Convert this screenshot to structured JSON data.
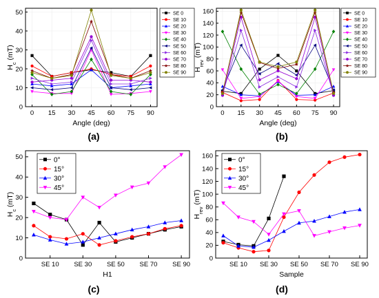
{
  "panel_labels": [
    "(a)",
    "(b)",
    "(c)",
    "(d)"
  ],
  "chart_data": [
    {
      "type": "line",
      "panel": "(a)",
      "xlabel": "Angle (deg)",
      "ylabel": "H",
      "ylabel_sub": "c",
      "ylabel_unit": " (mT)",
      "x": [
        0,
        15,
        30,
        45,
        60,
        75,
        90
      ],
      "xticks": [
        0,
        15,
        30,
        45,
        60,
        75,
        90
      ],
      "xlim": [
        -5,
        95
      ],
      "yticks": [
        0,
        10,
        20,
        30,
        40,
        50
      ],
      "ylim": [
        0,
        52
      ],
      "grid": true,
      "legend_position": "right",
      "series": [
        {
          "name": "SE 0",
          "color": "#000000",
          "marker": "square",
          "values": [
            27,
            16,
            18,
            19.5,
            18,
            16,
            27
          ]
        },
        {
          "name": "SE 10",
          "color": "#ff0000",
          "marker": "circle",
          "values": [
            21.5,
            16,
            18,
            20,
            17,
            16,
            21.5
          ]
        },
        {
          "name": "SE 20",
          "color": "#0000ff",
          "marker": "triangle",
          "values": [
            12,
            11,
            12,
            19.5,
            10,
            11,
            12
          ]
        },
        {
          "name": "SE 30",
          "color": "#ff00ff",
          "marker": "triangle-down",
          "values": [
            8,
            7,
            7,
            30,
            6.5,
            7,
            8
          ]
        },
        {
          "name": "SE 40",
          "color": "#008000",
          "marker": "diamond",
          "values": [
            17,
            6.5,
            8,
            25,
            8,
            6.5,
            17
          ]
        },
        {
          "name": "SE 50",
          "color": "#000080",
          "marker": "triangle-left",
          "values": [
            10,
            9,
            10,
            31,
            10,
            9,
            10
          ]
        },
        {
          "name": "SE 60",
          "color": "#8a2be2",
          "marker": "triangle-right",
          "values": [
            15,
            12,
            13,
            35,
            12,
            12,
            15
          ]
        },
        {
          "name": "SE 70",
          "color": "#9400d3",
          "marker": "hexagon",
          "values": [
            13,
            14,
            15,
            37,
            14,
            14,
            13
          ]
        },
        {
          "name": "SE 80",
          "color": "#800000",
          "marker": "star",
          "values": [
            19,
            15,
            17,
            45,
            17,
            15,
            19
          ]
        },
        {
          "name": "SE 90",
          "color": "#808000",
          "marker": "circle",
          "values": [
            18,
            15,
            16.5,
            51,
            16.5,
            15,
            18
          ]
        }
      ]
    },
    {
      "type": "line",
      "panel": "(b)",
      "xlabel": "Angle (deg)",
      "ylabel": "H",
      "ylabel_sub": "rev",
      "ylabel_unit": " (mT)",
      "x": [
        0,
        15,
        30,
        45,
        60,
        75,
        90
      ],
      "xticks": [
        0,
        15,
        30,
        45,
        60,
        75,
        90
      ],
      "xlim": [
        -5,
        95
      ],
      "yticks": [
        0,
        20,
        40,
        60,
        80,
        100,
        120,
        140,
        160
      ],
      "ylim": [
        0,
        165
      ],
      "grid": true,
      "legend_position": "right",
      "series": [
        {
          "name": "SE 0",
          "color": "#000000",
          "marker": "square",
          "values": [
            26,
            22,
            63,
            86,
            60,
            22,
            27
          ]
        },
        {
          "name": "SE 10",
          "color": "#ff0000",
          "marker": "circle",
          "values": [
            24,
            10,
            12,
            44,
            12,
            11,
            23
          ]
        },
        {
          "name": "SE 20",
          "color": "#0000ff",
          "marker": "triangle",
          "values": [
            34,
            20,
            18,
            42,
            19,
            20,
            34
          ]
        },
        {
          "name": "SE 30",
          "color": "#ff00ff",
          "marker": "triangle-down",
          "values": [
            62,
            14,
            17,
            43,
            17,
            14,
            62
          ]
        },
        {
          "name": "SE 40",
          "color": "#008000",
          "marker": "diamond",
          "values": [
            126,
            63,
            21,
            37,
            22,
            63,
            126
          ]
        },
        {
          "name": "SE 50",
          "color": "#000080",
          "marker": "triangle-left",
          "values": [
            28,
            103,
            55,
            72,
            53,
            103,
            28
          ]
        },
        {
          "name": "SE 60",
          "color": "#8a2be2",
          "marker": "triangle-right",
          "values": [
            20,
            128,
            33,
            50,
            33,
            128,
            20
          ]
        },
        {
          "name": "SE 70",
          "color": "#9400d3",
          "marker": "hexagon",
          "values": [
            19,
            150,
            45,
            60,
            47,
            150,
            19
          ]
        },
        {
          "name": "SE 80",
          "color": "#800000",
          "marker": "star",
          "values": [
            23,
            158,
            74,
            64,
            71,
            158,
            23
          ]
        },
        {
          "name": "SE 90",
          "color": "#808000",
          "marker": "circle",
          "values": [
            22,
            162,
            75,
            67,
            75,
            162,
            22
          ]
        }
      ]
    },
    {
      "type": "line",
      "panel": "(c)",
      "xlabel": "H1",
      "ylabel": "H",
      "ylabel_sub": "c",
      "ylabel_unit": " (mT)",
      "x": [
        0,
        10,
        20,
        30,
        40,
        50,
        60,
        70,
        80,
        90
      ],
      "xticks": [
        10,
        30,
        50,
        70,
        90
      ],
      "xtick_labels": [
        "SE 10",
        "SE 30",
        "SE 50",
        "SE 70",
        "SE 90"
      ],
      "xlim": [
        -5,
        95
      ],
      "yticks": [
        0,
        10,
        20,
        30,
        40,
        50
      ],
      "ylim": [
        0,
        53
      ],
      "grid": false,
      "legend_position": "top-left",
      "series": [
        {
          "name": "0°",
          "color": "#000000",
          "marker": "square",
          "values": [
            27,
            21.5,
            19,
            6.5,
            17.5,
            8,
            10,
            12,
            14,
            15.5
          ]
        },
        {
          "name": "15°",
          "color": "#ff0000",
          "marker": "circle",
          "values": [
            16,
            10.5,
            9.5,
            12,
            6.5,
            8.5,
            10.5,
            12,
            14.5,
            16
          ]
        },
        {
          "name": "30°",
          "color": "#0000ff",
          "marker": "triangle",
          "values": [
            11.5,
            9,
            7,
            8,
            10,
            12,
            14,
            15.5,
            17.5,
            18.5
          ]
        },
        {
          "name": "45°",
          "color": "#ff00ff",
          "marker": "triangle-down",
          "values": [
            23,
            20,
            19,
            30,
            25,
            31,
            35,
            37,
            45,
            51
          ]
        }
      ]
    },
    {
      "type": "line",
      "panel": "(d)",
      "xlabel": "Sample",
      "ylabel": "H",
      "ylabel_sub": "rev",
      "ylabel_unit": " (mT)",
      "x": [
        0,
        10,
        20,
        30,
        40,
        50,
        60,
        70,
        80,
        90
      ],
      "xticks": [
        10,
        30,
        50,
        70,
        90
      ],
      "xtick_labels": [
        "SE 10",
        "SE 30",
        "SE 50",
        "SE 70",
        "SE 90"
      ],
      "xlim": [
        -5,
        95
      ],
      "yticks": [
        0,
        20,
        40,
        60,
        80,
        100,
        120,
        140,
        160
      ],
      "ylim": [
        0,
        168
      ],
      "grid": false,
      "legend_position": "top-left",
      "series": [
        {
          "name": "0°",
          "color": "#000000",
          "marker": "square",
          "x": [
            0,
            10,
            20,
            30,
            40
          ],
          "values": [
            26,
            21,
            19,
            62,
            128
          ]
        },
        {
          "name": "15°",
          "color": "#ff0000",
          "marker": "circle",
          "values": [
            24,
            16,
            10,
            12,
            64,
            103,
            130,
            150,
            158,
            162
          ]
        },
        {
          "name": "30°",
          "color": "#0000ff",
          "marker": "triangle",
          "values": [
            35,
            19,
            17,
            28,
            42,
            55,
            58,
            65,
            72,
            76
          ]
        },
        {
          "name": "45°",
          "color": "#ff00ff",
          "marker": "triangle-down",
          "values": [
            86,
            64,
            57,
            37,
            69,
            74,
            35,
            41,
            47,
            51
          ]
        }
      ]
    }
  ]
}
